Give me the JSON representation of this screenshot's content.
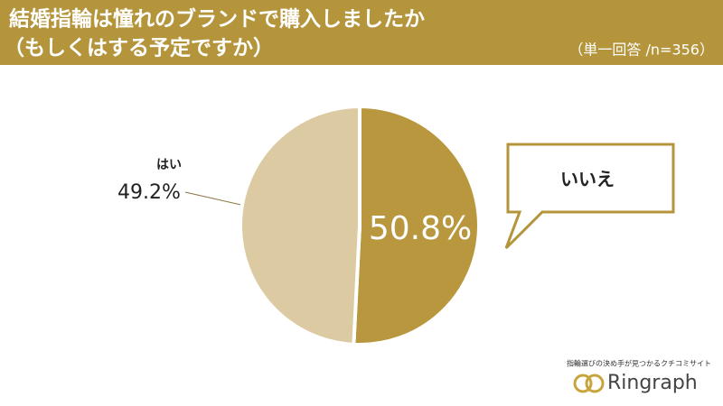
{
  "chart_data": {
    "type": "pie",
    "title": [
      "結婚指輪は憧れのブランドで購入しましたか",
      "（もしくはする予定ですか）"
    ],
    "subtitle": "（単一回答 /n=356）",
    "categories": [
      "いいえ",
      "はい"
    ],
    "values": [
      50.8,
      49.2
    ],
    "value_labels": [
      "50.8%",
      "49.2%"
    ],
    "colors": [
      "#b8973e",
      "#dccaa2"
    ]
  },
  "footer": {
    "tagline": "指輪選びの決め手が見つかるクチコミサイト",
    "brand": "Ringraph"
  }
}
